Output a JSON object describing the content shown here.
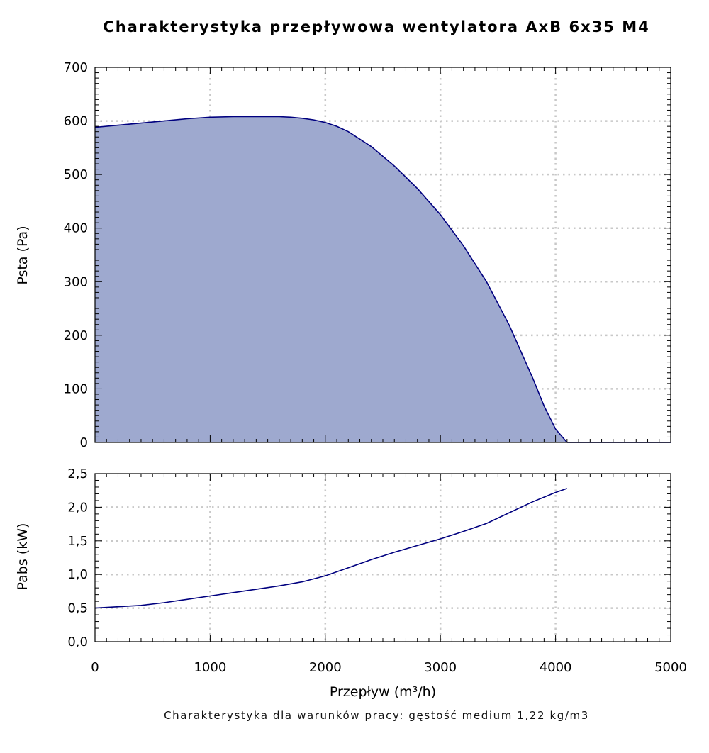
{
  "title": "Charakterystyka przepływowa wentylatora AxB 6x35 M4",
  "footnote": "Charakterystyka dla warunków pracy: gęstość medium 1,22 kg/m3",
  "colors": {
    "area_fill": "#9ea9cf",
    "curve": "#00007f",
    "grid": "#c8c8c8",
    "axis": "#000000"
  },
  "chart_data": [
    {
      "type": "area",
      "xlabel": "",
      "ylabel": "Psta (Pa)",
      "xlim": [
        0,
        5000
      ],
      "ylim": [
        0,
        700
      ],
      "grid": true,
      "y_ticks": [
        "0",
        "100",
        "200",
        "300",
        "400",
        "500",
        "600",
        "700"
      ],
      "y_tick_values": [
        0,
        100,
        200,
        300,
        400,
        500,
        600,
        700
      ],
      "x_tick_values": [
        0,
        1000,
        2000,
        3000,
        4000,
        5000
      ],
      "series": [
        {
          "x": [
            0,
            200,
            400,
            600,
            800,
            1000,
            1200,
            1400,
            1600,
            1700,
            1800,
            1900,
            2000,
            2100,
            2200,
            2400,
            2600,
            2800,
            3000,
            3200,
            3400,
            3600,
            3800,
            3900,
            4000,
            4100
          ],
          "y": [
            588,
            592,
            596,
            600,
            604,
            607,
            608,
            608,
            608,
            607,
            605,
            602,
            597,
            590,
            580,
            552,
            516,
            474,
            425,
            367,
            300,
            218,
            121,
            68,
            25,
            0
          ]
        }
      ]
    },
    {
      "type": "line",
      "xlabel": "Przepływ (m³/h)",
      "ylabel": "Pabs (kW)",
      "xlim": [
        0,
        5000
      ],
      "ylim": [
        0,
        2.5
      ],
      "grid": true,
      "y_ticks": [
        "0,0",
        "0,5",
        "1,0",
        "1,5",
        "2,0",
        "2,5"
      ],
      "y_tick_values": [
        0,
        0.5,
        1.0,
        1.5,
        2.0,
        2.5
      ],
      "x_ticks": [
        "0",
        "1000",
        "2000",
        "3000",
        "4000",
        "5000"
      ],
      "x_tick_values": [
        0,
        1000,
        2000,
        3000,
        4000,
        5000
      ],
      "series": [
        {
          "x": [
            0,
            200,
            400,
            600,
            800,
            1000,
            1200,
            1400,
            1600,
            1800,
            2000,
            2200,
            2400,
            2600,
            2800,
            3000,
            3200,
            3400,
            3600,
            3800,
            4000,
            4100
          ],
          "y": [
            0.5,
            0.52,
            0.54,
            0.58,
            0.63,
            0.68,
            0.73,
            0.78,
            0.83,
            0.89,
            0.98,
            1.1,
            1.22,
            1.33,
            1.43,
            1.53,
            1.64,
            1.76,
            1.92,
            2.08,
            2.22,
            2.28
          ]
        }
      ]
    }
  ]
}
